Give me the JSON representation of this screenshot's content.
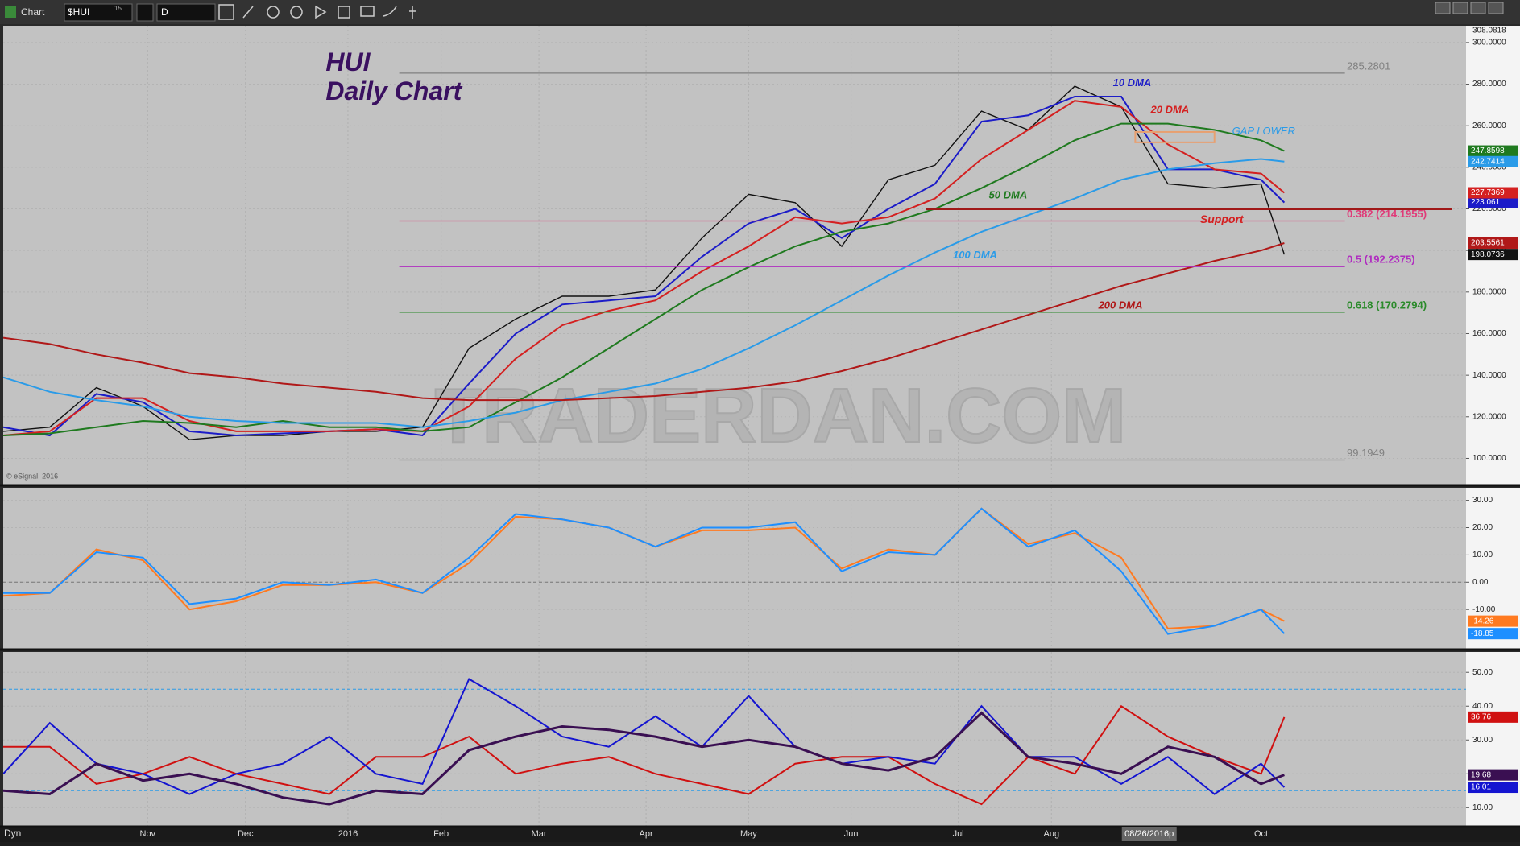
{
  "toolbar": {
    "label": "Chart",
    "symbol": "$HUI",
    "symbol_note": "15",
    "interval": "D",
    "corner": "Dyn"
  },
  "chart_data": [
    {
      "type": "line",
      "title": "HUI",
      "subtitle": "Daily Chart",
      "watermark": "TRADERDAN.COM",
      "credit": "© eSignal, 2016",
      "x": [
        0,
        10,
        20,
        30,
        40,
        50,
        60,
        70,
        80,
        90,
        100,
        110,
        120,
        130,
        140,
        150,
        160,
        170,
        180,
        190,
        200,
        210,
        220,
        230,
        240,
        250,
        260,
        270,
        275
      ],
      "xlim": [
        0,
        314
      ],
      "xticks": [
        {
          "value": 31,
          "label": "Nov"
        },
        {
          "value": 52,
          "label": "Dec"
        },
        {
          "value": 74,
          "label": "2016"
        },
        {
          "value": 94,
          "label": "Feb"
        },
        {
          "value": 115,
          "label": "Mar"
        },
        {
          "value": 138,
          "label": "Apr"
        },
        {
          "value": 160,
          "label": "May"
        },
        {
          "value": 182,
          "label": "Jun"
        },
        {
          "value": 205,
          "label": "Jul"
        },
        {
          "value": 225,
          "label": "Aug"
        },
        {
          "value": 270,
          "label": "Oct"
        }
      ],
      "cursor": {
        "value": 246,
        "label": "08/26/2016p"
      },
      "ylim": [
        87.4,
        308.0818
      ],
      "yticks": [
        {
          "value": 100,
          "label": "100.0000"
        },
        {
          "value": 120,
          "label": "120.0000"
        },
        {
          "value": 140,
          "label": "140.0000"
        },
        {
          "value": 160,
          "label": "160.0000"
        },
        {
          "value": 180,
          "label": "180.0000"
        },
        {
          "value": 200,
          "label": "200.0000"
        },
        {
          "value": 220,
          "label": "220.0000"
        },
        {
          "value": 240,
          "label": "240.0000"
        },
        {
          "value": 260,
          "label": "260.0000"
        },
        {
          "value": 280,
          "label": "280.0000"
        },
        {
          "value": 300,
          "label": "300.0000"
        }
      ],
      "series": [
        {
          "color": "#111111",
          "values": [
            113,
            115,
            134,
            125,
            109,
            111,
            111,
            113,
            113,
            115,
            153,
            167,
            178,
            178,
            181,
            206,
            227,
            223,
            202,
            234,
            241,
            267,
            258,
            279,
            269,
            232,
            230,
            232,
            198.0736
          ]
        },
        {
          "name": "10 DMA",
          "color": "#1c1cc8",
          "values": [
            115,
            111,
            131,
            127,
            113,
            111,
            112,
            113,
            114,
            111,
            136,
            160,
            174,
            176,
            178,
            197,
            213,
            220,
            206,
            220,
            232,
            262,
            265,
            274,
            274,
            239,
            239,
            234,
            223.061
          ]
        },
        {
          "name": "20 DMA",
          "color": "#d42020",
          "values": [
            111,
            113,
            129,
            129,
            118,
            113,
            113,
            113,
            114,
            113,
            125,
            148,
            164,
            171,
            176,
            190,
            202,
            216,
            213,
            216,
            225,
            244,
            258,
            272,
            269,
            251,
            239,
            237,
            227.7369
          ]
        },
        {
          "name": "50 DMA",
          "color": "#1f7a1f",
          "values": [
            111,
            112,
            115,
            118,
            117,
            115,
            118,
            115,
            115,
            113,
            115,
            127,
            139,
            153,
            167,
            181,
            192,
            202,
            209,
            213,
            220,
            230,
            241,
            253,
            261,
            261,
            258,
            253,
            247.8598
          ]
        },
        {
          "name": "100 DMA",
          "color": "#2a9be8",
          "values": [
            139,
            132,
            128,
            125,
            120,
            118,
            117,
            117,
            117,
            115,
            118,
            122,
            128,
            132,
            136,
            143,
            153,
            164,
            176,
            188,
            199,
            209,
            217,
            225,
            234,
            239,
            242,
            244,
            242.7414
          ]
        },
        {
          "name": "200 DMA",
          "color": "#b01818",
          "values": [
            158,
            155,
            150,
            146,
            141,
            139,
            136,
            134,
            132,
            129,
            128,
            128,
            128,
            129,
            130,
            132,
            134,
            137,
            142,
            148,
            155,
            162,
            169,
            176,
            183,
            189,
            195,
            200,
            203.5561
          ]
        }
      ],
      "levels": [
        {
          "value": 285.2801,
          "label": "285.2801",
          "color": "#808080"
        },
        {
          "value": 214.1955,
          "label": "0.382 (214.1955)",
          "color": "#e03a78"
        },
        {
          "value": 192.2375,
          "label": "0.5 (192.2375)",
          "color": "#b02cc0"
        },
        {
          "value": 170.2794,
          "label": "0.618 (170.2794)",
          "color": "#2a8a2a"
        },
        {
          "value": 99.1949,
          "label": "99.1949",
          "color": "#808080"
        }
      ],
      "level_x_range": [
        85,
        288
      ],
      "support": {
        "label": "Support",
        "value": 220,
        "x_range": [
          198,
          311
        ],
        "color": "#a01818"
      },
      "gap": {
        "label": "GAP LOWER",
        "range": [
          252,
          257
        ],
        "x_range": [
          243,
          260
        ],
        "color": "#e8a070"
      }
    },
    {
      "type": "line",
      "x": [
        0,
        10,
        20,
        30,
        40,
        50,
        60,
        70,
        80,
        90,
        100,
        110,
        120,
        130,
        140,
        150,
        160,
        170,
        180,
        190,
        200,
        210,
        220,
        230,
        240,
        250,
        260,
        270,
        275
      ],
      "xlim": [
        0,
        314
      ],
      "ylim": [
        -24.4,
        34.6
      ],
      "yticks": [
        {
          "value": 30,
          "label": "30.00"
        },
        {
          "value": 20,
          "label": "20.00"
        },
        {
          "value": 10,
          "label": "10.00"
        },
        {
          "value": 0,
          "label": "0.00"
        },
        {
          "value": -10,
          "label": "-10.00"
        }
      ],
      "levels": [
        0
      ],
      "series": [
        {
          "color": "#ff7a20",
          "values": [
            -5,
            -4,
            12,
            8,
            -10,
            -7,
            -1,
            -1,
            0,
            -4,
            7,
            24,
            23,
            20,
            13,
            19,
            19,
            20,
            5,
            12,
            10,
            27,
            14,
            18,
            9,
            -17,
            -16,
            -10,
            -14.26
          ]
        },
        {
          "color": "#1e8fff",
          "values": [
            -4,
            -4,
            11,
            9,
            -8,
            -6,
            0,
            -1,
            1,
            -4,
            9,
            25,
            23,
            20,
            13,
            20,
            20,
            22,
            4,
            11,
            10,
            27,
            13,
            19,
            4,
            -19,
            -16,
            -10,
            -18.85
          ]
        }
      ]
    },
    {
      "type": "line",
      "x": [
        0,
        10,
        20,
        30,
        40,
        50,
        60,
        70,
        80,
        90,
        100,
        110,
        120,
        130,
        140,
        150,
        160,
        170,
        180,
        190,
        200,
        210,
        220,
        230,
        240,
        250,
        260,
        270,
        275
      ],
      "xlim": [
        0,
        314
      ],
      "ylim": [
        4.6,
        56
      ],
      "yticks": [
        {
          "value": 50,
          "label": "50.00"
        },
        {
          "value": 40,
          "label": "40.00"
        },
        {
          "value": 30,
          "label": "30.00"
        },
        {
          "value": 20,
          "label": "20.00"
        },
        {
          "value": 10,
          "label": "10.00"
        }
      ],
      "levels": [
        45,
        15
      ],
      "series": [
        {
          "color": "#d01010",
          "values": [
            28,
            28,
            17,
            20,
            25,
            20,
            17,
            14,
            25,
            25,
            31,
            20,
            23,
            25,
            20,
            17,
            14,
            23,
            25,
            25,
            17,
            11,
            25,
            20,
            40,
            31,
            25,
            20,
            36.76
          ]
        },
        {
          "color": "#1414d0",
          "values": [
            20,
            35,
            23,
            20,
            14,
            20,
            23,
            31,
            20,
            17,
            48,
            40,
            31,
            28,
            37,
            28,
            43,
            28,
            23,
            25,
            23,
            40,
            25,
            25,
            17,
            25,
            14,
            23,
            16.01
          ]
        },
        {
          "color": "#3a0f52",
          "width": 3,
          "values": [
            15,
            14,
            23,
            18,
            20,
            17,
            13,
            11,
            15,
            14,
            27,
            31,
            34,
            33,
            31,
            28,
            30,
            28,
            23,
            21,
            25,
            38,
            25,
            23,
            20,
            28,
            25,
            17,
            19.68
          ]
        }
      ]
    }
  ]
}
